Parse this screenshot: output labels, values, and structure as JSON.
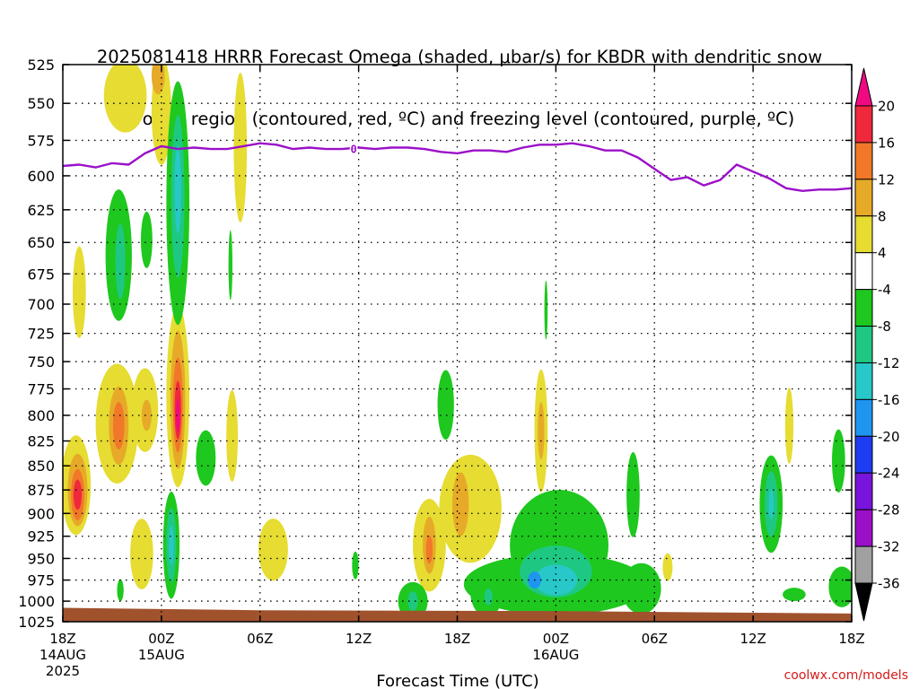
{
  "chart_data": {
    "type": "heatmap",
    "title_lines": [
      "2025081418 HRRR Forecast Omega (shaded, μbar/s) for KBDR with dendritic snow",
      "growth region (contoured, red, ºC) and freezing level (contoured, purple, ºC)"
    ],
    "xlabel": "Forecast Time (UTC)",
    "x_ticks": [
      {
        "hour": 0,
        "lines": [
          "18Z",
          "14AUG",
          "2025"
        ]
      },
      {
        "hour": 6,
        "lines": [
          "00Z",
          "15AUG"
        ]
      },
      {
        "hour": 12,
        "lines": [
          "06Z"
        ]
      },
      {
        "hour": 18,
        "lines": [
          "12Z"
        ]
      },
      {
        "hour": 24,
        "lines": [
          "18Z"
        ]
      },
      {
        "hour": 30,
        "lines": [
          "00Z",
          "16AUG"
        ]
      },
      {
        "hour": 36,
        "lines": [
          "06Z"
        ]
      },
      {
        "hour": 42,
        "lines": [
          "12Z"
        ]
      },
      {
        "hour": 48,
        "lines": [
          "18Z"
        ]
      }
    ],
    "xlim": [
      0,
      48
    ],
    "y_ticks": [
      525,
      550,
      575,
      600,
      625,
      650,
      675,
      700,
      725,
      750,
      775,
      800,
      825,
      850,
      875,
      900,
      925,
      950,
      975,
      1000,
      1025
    ],
    "ylim": [
      525,
      1025
    ],
    "y_scale": "log-pressure",
    "grid": true,
    "colorbar": {
      "levels": [
        -36,
        -32,
        -28,
        -24,
        -20,
        -16,
        -12,
        -8,
        -4,
        4,
        8,
        12,
        16,
        20
      ],
      "labels": [
        "20",
        "16",
        "12",
        "8",
        "4",
        "-4",
        "-8",
        "-12",
        "-16",
        "-20",
        "-24",
        "-28",
        "-32",
        "-36"
      ],
      "colors_top_to_bottom": [
        "#f00a82",
        "#f0283c",
        "#f07828",
        "#e6aa28",
        "#e6dc32",
        "#ffffff",
        "#1ec81e",
        "#1ec882",
        "#28c8c8",
        "#1e96f0",
        "#1e3cf0",
        "#7814dc",
        "#9b0fc8",
        "#a0a0a0",
        "#000000"
      ]
    },
    "series": [
      {
        "name": "freezing level",
        "color": "#9b10c9",
        "contour_label": "0",
        "x": [
          0,
          1,
          2,
          3,
          4,
          5,
          6,
          7,
          8,
          9,
          10,
          11,
          12,
          13,
          14,
          15,
          16,
          17,
          18,
          19,
          20,
          21,
          22,
          23,
          24,
          25,
          26,
          27,
          28,
          29,
          30,
          31,
          32,
          33,
          34,
          35,
          36,
          37,
          38,
          39,
          40,
          41,
          42,
          43,
          44,
          45,
          46,
          47,
          48
        ],
        "y": [
          593,
          592,
          594,
          591,
          592,
          584,
          579,
          581,
          580,
          581,
          581,
          579,
          577,
          578,
          581,
          580,
          581,
          581,
          580,
          581,
          580,
          580,
          581,
          583,
          584,
          582,
          582,
          583,
          580,
          578,
          578,
          577,
          579,
          582,
          582,
          587,
          595,
          603,
          601,
          607,
          603,
          592,
          597,
          602,
          609,
          611,
          610,
          610,
          609
        ]
      }
    ],
    "omega_regions": [
      {
        "level": 4,
        "cx": 1.0,
        "cy": 690,
        "rx": 0.4,
        "ry": 38
      },
      {
        "level": 4,
        "cx": 0.8,
        "cy": 870,
        "rx": 0.9,
        "ry": 52
      },
      {
        "level": 8,
        "cx": 0.9,
        "cy": 875,
        "rx": 0.6,
        "ry": 38
      },
      {
        "level": 12,
        "cx": 0.9,
        "cy": 880,
        "rx": 0.4,
        "ry": 27
      },
      {
        "level": 16,
        "cx": 0.9,
        "cy": 880,
        "rx": 0.25,
        "ry": 16
      },
      {
        "level": 4,
        "cx": 3.3,
        "cy": 808,
        "rx": 1.3,
        "ry": 58
      },
      {
        "level": 8,
        "cx": 3.4,
        "cy": 810,
        "rx": 0.6,
        "ry": 38
      },
      {
        "level": 12,
        "cx": 3.4,
        "cy": 810,
        "rx": 0.35,
        "ry": 23
      },
      {
        "level": 4,
        "cx": 5.0,
        "cy": 795,
        "rx": 0.8,
        "ry": 40
      },
      {
        "level": 8,
        "cx": 5.1,
        "cy": 800,
        "rx": 0.3,
        "ry": 15
      },
      {
        "level": 4,
        "cx": 7.0,
        "cy": 782,
        "rx": 0.7,
        "ry": 85
      },
      {
        "level": 8,
        "cx": 7.0,
        "cy": 785,
        "rx": 0.45,
        "ry": 65
      },
      {
        "level": 12,
        "cx": 7.0,
        "cy": 790,
        "rx": 0.3,
        "ry": 45
      },
      {
        "level": 16,
        "cx": 7.0,
        "cy": 795,
        "rx": 0.2,
        "ry": 28
      },
      {
        "level": 20,
        "cx": 7.0,
        "cy": 800,
        "rx": 0.12,
        "ry": 16
      },
      {
        "level": 4,
        "cx": 3.8,
        "cy": 545,
        "rx": 1.3,
        "ry": 24
      },
      {
        "level": 4,
        "cx": 6.0,
        "cy": 555,
        "rx": 0.6,
        "ry": 36
      },
      {
        "level": 8,
        "cx": 5.8,
        "cy": 532,
        "rx": 0.4,
        "ry": 12
      },
      {
        "level": 4,
        "cx": 10.8,
        "cy": 580,
        "rx": 0.4,
        "ry": 52
      },
      {
        "level": 4,
        "cx": 4.8,
        "cy": 945,
        "rx": 0.7,
        "ry": 40
      },
      {
        "level": 4,
        "cx": 10.3,
        "cy": 820,
        "rx": 0.35,
        "ry": 45
      },
      {
        "level": 4,
        "cx": 12.8,
        "cy": 940,
        "rx": 0.9,
        "ry": 35
      },
      {
        "level": 4,
        "cx": 22.3,
        "cy": 935,
        "rx": 1.0,
        "ry": 52
      },
      {
        "level": 8,
        "cx": 22.3,
        "cy": 935,
        "rx": 0.4,
        "ry": 32
      },
      {
        "level": 12,
        "cx": 22.3,
        "cy": 940,
        "rx": 0.2,
        "ry": 16
      },
      {
        "level": 4,
        "cx": 24.8,
        "cy": 895,
        "rx": 1.9,
        "ry": 58
      },
      {
        "level": 8,
        "cx": 24.2,
        "cy": 890,
        "rx": 0.5,
        "ry": 34
      },
      {
        "level": 4,
        "cx": 29.1,
        "cy": 815,
        "rx": 0.4,
        "ry": 60
      },
      {
        "level": 8,
        "cx": 29.1,
        "cy": 815,
        "rx": 0.2,
        "ry": 28
      },
      {
        "level": 4,
        "cx": 36.8,
        "cy": 960,
        "rx": 0.3,
        "ry": 16
      },
      {
        "level": 4,
        "cx": 44.2,
        "cy": 810,
        "rx": 0.25,
        "ry": 37
      },
      {
        "level": -4,
        "cx": 3.4,
        "cy": 660,
        "rx": 0.8,
        "ry": 52
      },
      {
        "level": -4,
        "cx": 5.1,
        "cy": 648,
        "rx": 0.35,
        "ry": 22
      },
      {
        "level": -8,
        "cx": 3.5,
        "cy": 665,
        "rx": 0.3,
        "ry": 30
      },
      {
        "level": -4,
        "cx": 7.0,
        "cy": 620,
        "rx": 0.7,
        "ry": 90
      },
      {
        "level": -8,
        "cx": 7.0,
        "cy": 615,
        "rx": 0.4,
        "ry": 60
      },
      {
        "level": -12,
        "cx": 7.0,
        "cy": 610,
        "rx": 0.2,
        "ry": 32
      },
      {
        "level": -4,
        "cx": 10.2,
        "cy": 668,
        "rx": 0.12,
        "ry": 28
      },
      {
        "level": -4,
        "cx": 8.7,
        "cy": 842,
        "rx": 0.6,
        "ry": 28
      },
      {
        "level": -4,
        "cx": 6.6,
        "cy": 935,
        "rx": 0.5,
        "ry": 60
      },
      {
        "level": -8,
        "cx": 6.6,
        "cy": 935,
        "rx": 0.3,
        "ry": 42
      },
      {
        "level": -12,
        "cx": 6.6,
        "cy": 935,
        "rx": 0.15,
        "ry": 22
      },
      {
        "level": -4,
        "cx": 3.5,
        "cy": 987,
        "rx": 0.2,
        "ry": 13
      },
      {
        "level": -4,
        "cx": 17.8,
        "cy": 958,
        "rx": 0.2,
        "ry": 16
      },
      {
        "level": -4,
        "cx": 23.3,
        "cy": 790,
        "rx": 0.5,
        "ry": 33
      },
      {
        "level": -4,
        "cx": 21.3,
        "cy": 1000,
        "rx": 0.9,
        "ry": 23
      },
      {
        "level": -8,
        "cx": 21.3,
        "cy": 1000,
        "rx": 0.3,
        "ry": 12
      },
      {
        "level": -4,
        "cx": 30.0,
        "cy": 980,
        "rx": 5.6,
        "ry": 36
      },
      {
        "level": -4,
        "cx": 30.2,
        "cy": 935,
        "rx": 3.0,
        "ry": 62
      },
      {
        "level": -8,
        "cx": 30.0,
        "cy": 965,
        "rx": 2.2,
        "ry": 30
      },
      {
        "level": -12,
        "cx": 30.0,
        "cy": 975,
        "rx": 1.3,
        "ry": 18
      },
      {
        "level": -16,
        "cx": 28.7,
        "cy": 975,
        "rx": 0.4,
        "ry": 10
      },
      {
        "level": -4,
        "cx": 25.8,
        "cy": 990,
        "rx": 1.0,
        "ry": 28
      },
      {
        "level": -8,
        "cx": 25.9,
        "cy": 995,
        "rx": 0.25,
        "ry": 10
      },
      {
        "level": -4,
        "cx": 35.2,
        "cy": 985,
        "rx": 1.2,
        "ry": 30
      },
      {
        "level": -4,
        "cx": 34.7,
        "cy": 880,
        "rx": 0.4,
        "ry": 45
      },
      {
        "level": -4,
        "cx": 29.4,
        "cy": 705,
        "rx": 0.1,
        "ry": 25
      },
      {
        "level": -4,
        "cx": 43.1,
        "cy": 890,
        "rx": 0.7,
        "ry": 52
      },
      {
        "level": -8,
        "cx": 43.1,
        "cy": 890,
        "rx": 0.4,
        "ry": 35
      },
      {
        "level": -12,
        "cx": 43.1,
        "cy": 890,
        "rx": 0.15,
        "ry": 16
      },
      {
        "level": -4,
        "cx": 44.5,
        "cy": 992,
        "rx": 0.7,
        "ry": 8
      },
      {
        "level": -4,
        "cx": 47.2,
        "cy": 845,
        "rx": 0.4,
        "ry": 32
      },
      {
        "level": -4,
        "cx": 47.4,
        "cy": 983,
        "rx": 0.8,
        "ry": 24
      }
    ],
    "terrain": {
      "color": "#a0522d",
      "surface_pressure_start": 1008,
      "surface_pressure_end": 1015
    }
  },
  "watermark": "coolwx.com/models"
}
